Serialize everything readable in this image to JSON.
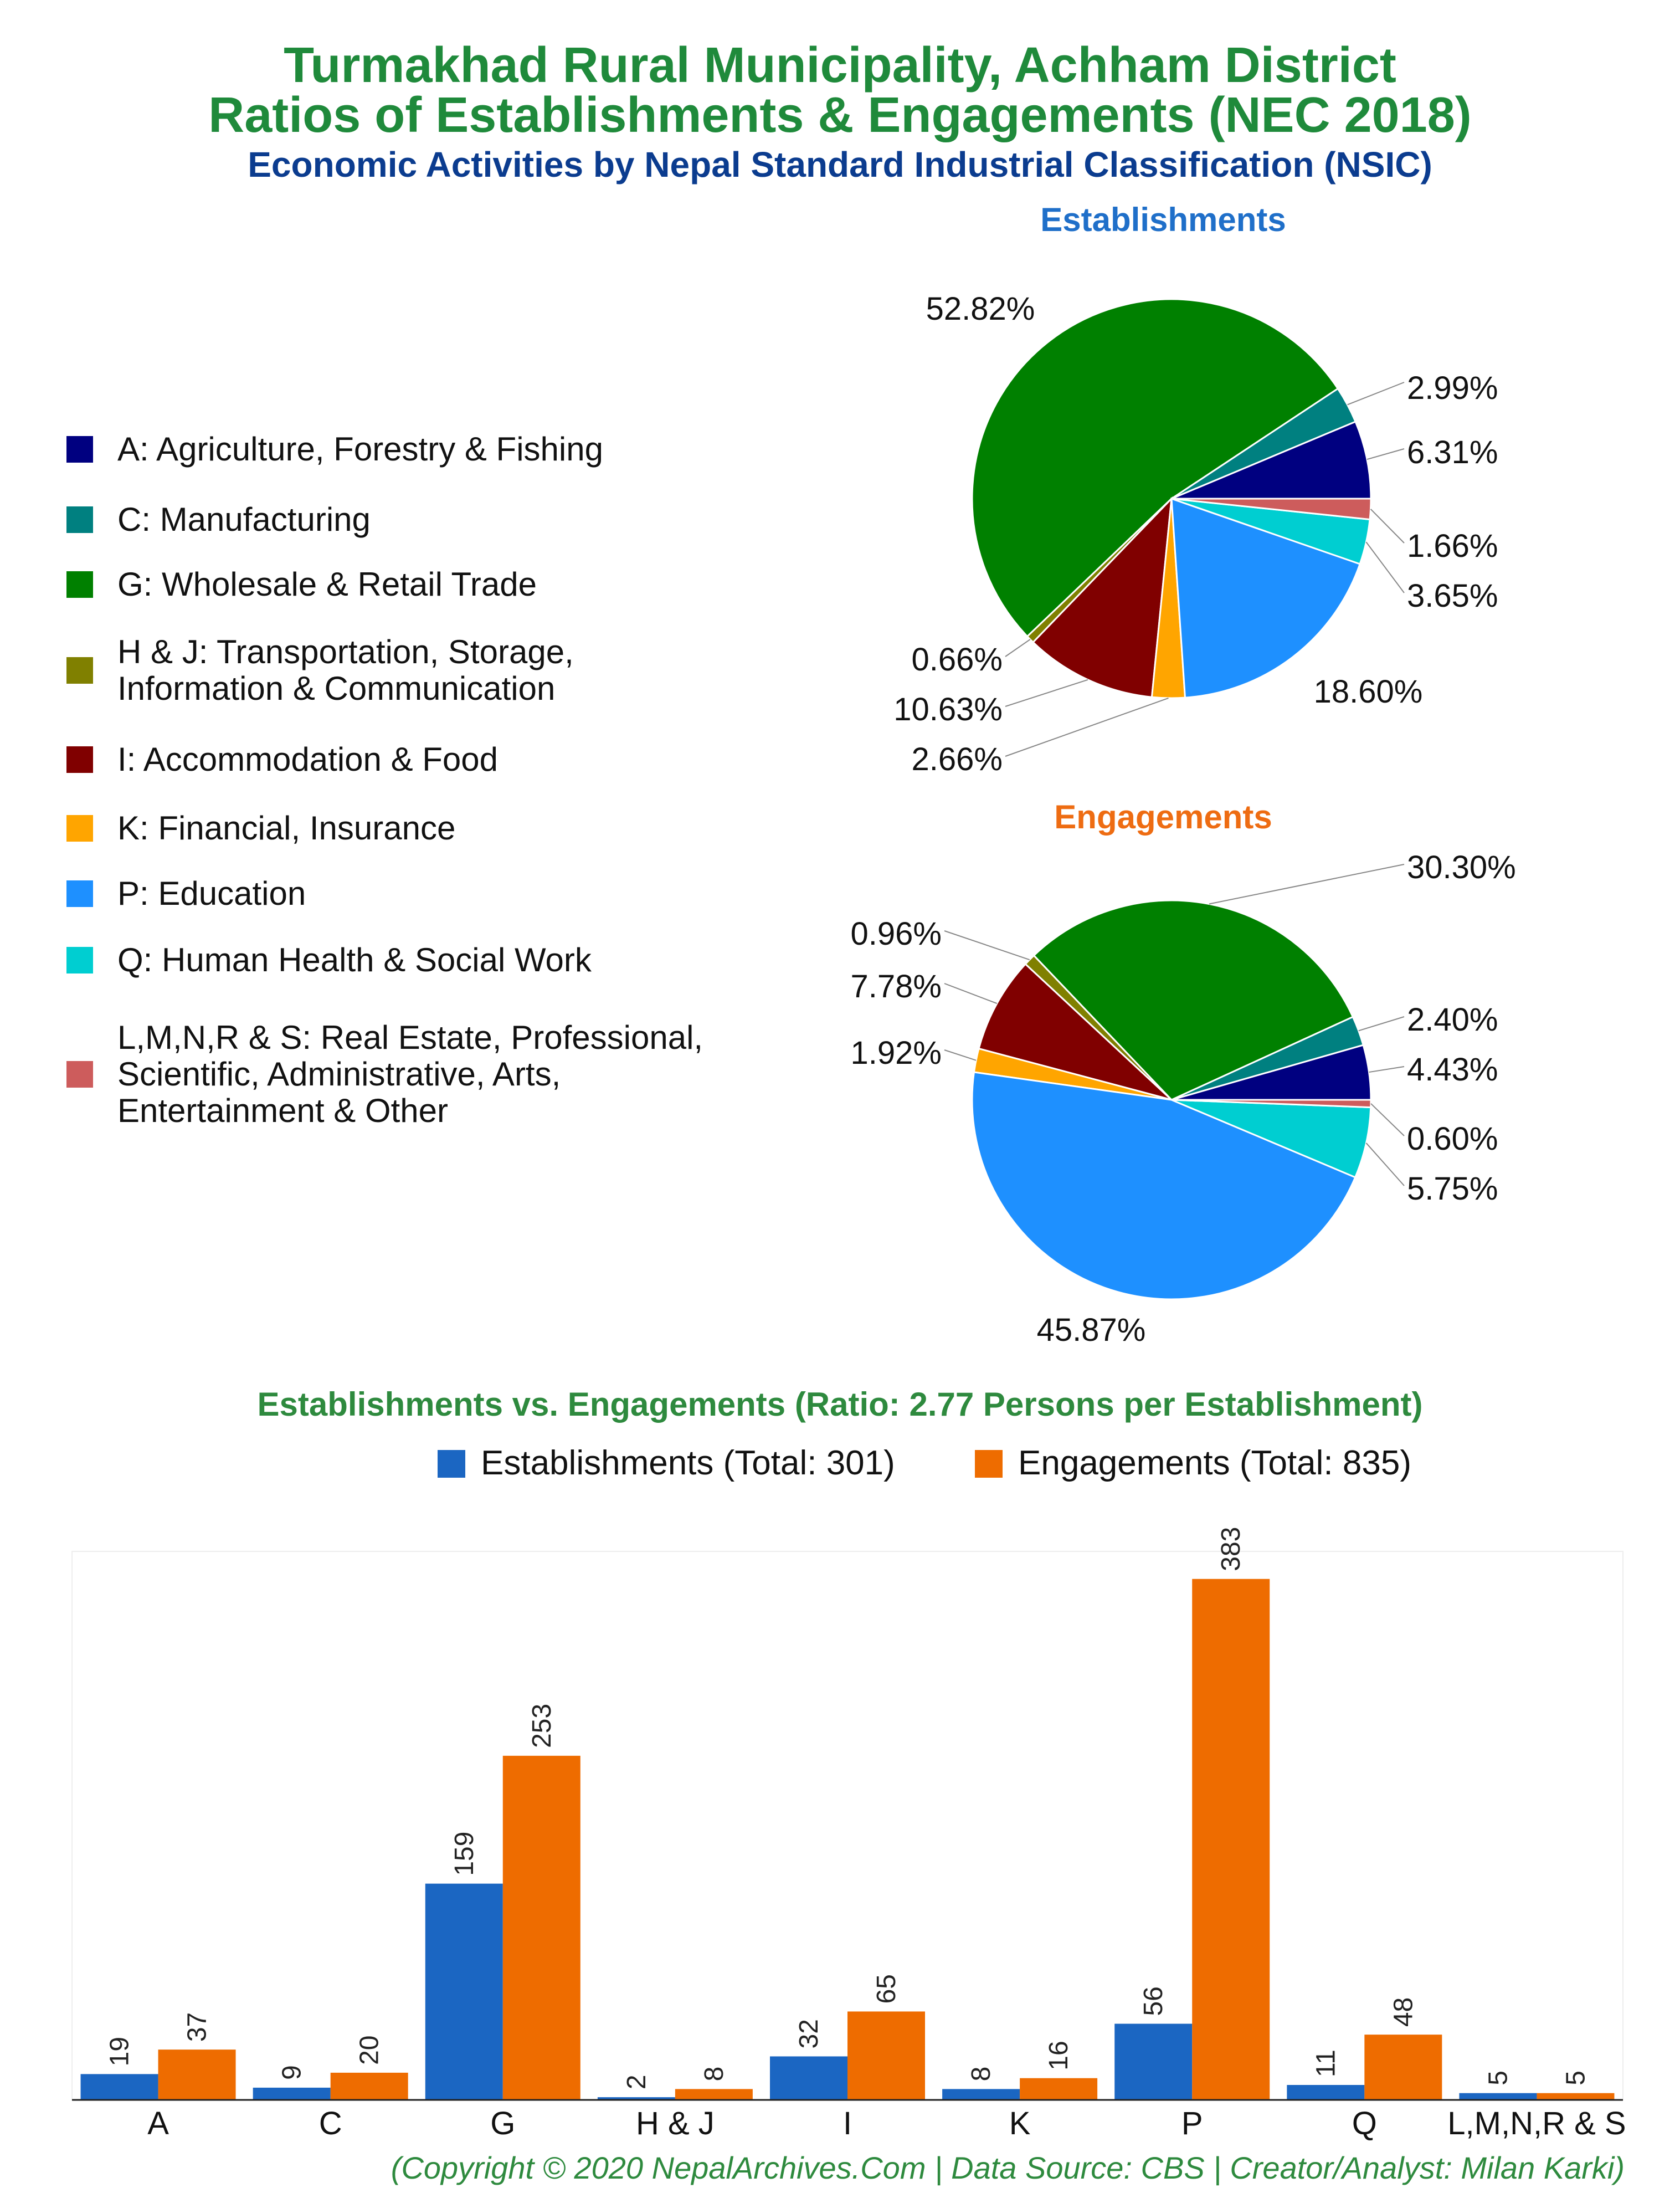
{
  "header": {
    "title_line1": "Turmakhad Rural Municipality, Achham District",
    "title_line2": "Ratios of Establishments & Engagements (NEC 2018)",
    "subtitle": "Economic Activities by Nepal Standard Industrial Classification (NSIC)"
  },
  "legend": [
    {
      "label": "A: Agriculture, Forestry & Fishing",
      "color": "#000080"
    },
    {
      "label": "C: Manufacturing",
      "color": "#008080"
    },
    {
      "label": "G: Wholesale & Retail Trade",
      "color": "#008000"
    },
    {
      "label_line1": "H & J: Transportation, Storage,",
      "label_line2": "Information & Communication",
      "color": "#808000"
    },
    {
      "label": "I: Accommodation & Food",
      "color": "#800000"
    },
    {
      "label": "K: Financial, Insurance",
      "color": "#FFA500"
    },
    {
      "label": "P: Education",
      "color": "#1E90FF"
    },
    {
      "label": "Q: Human Health & Social Work",
      "color": "#00CED1"
    },
    {
      "label_line1": "L,M,N,R & S: Real Estate, Professional,",
      "label_line2": "Scientific, Administrative, Arts,",
      "label_line3": "Entertainment & Other",
      "color": "#CD5C5C"
    }
  ],
  "chart_data": [
    {
      "type": "pie",
      "title": "Establishments",
      "title_color": "#1f6fc9",
      "categories": [
        "A",
        "C",
        "G",
        "H & J",
        "I",
        "K",
        "P",
        "Q",
        "L,M,N,R & S"
      ],
      "values": [
        6.31,
        2.99,
        52.82,
        0.66,
        10.63,
        2.66,
        18.6,
        3.65,
        1.66
      ],
      "labels": [
        "6.31%",
        "2.99%",
        "52.82%",
        "0.66%",
        "10.63%",
        "2.66%",
        "18.60%",
        "3.65%",
        "1.66%"
      ],
      "colors": [
        "#000080",
        "#008080",
        "#008000",
        "#808000",
        "#800000",
        "#FFA500",
        "#1E90FF",
        "#00CED1",
        "#CD5C5C"
      ]
    },
    {
      "type": "pie",
      "title": "Engagements",
      "title_color": "#ee6c12",
      "categories": [
        "A",
        "C",
        "G",
        "H & J",
        "I",
        "K",
        "P",
        "Q",
        "L,M,N,R & S"
      ],
      "values": [
        4.43,
        2.4,
        30.3,
        0.96,
        7.78,
        1.92,
        45.87,
        5.75,
        0.6
      ],
      "labels": [
        "4.43%",
        "2.40%",
        "30.30%",
        "0.96%",
        "7.78%",
        "1.92%",
        "45.87%",
        "5.75%",
        "0.60%"
      ],
      "colors": [
        "#000080",
        "#008080",
        "#008000",
        "#808000",
        "#800000",
        "#FFA500",
        "#1E90FF",
        "#00CED1",
        "#CD5C5C"
      ]
    },
    {
      "type": "bar",
      "title": "Establishments vs. Engagements (Ratio: 2.77 Persons per Establishment)",
      "categories": [
        "A",
        "C",
        "G",
        "H & J",
        "I",
        "K",
        "P",
        "Q",
        "L,M,N,R & S"
      ],
      "series": [
        {
          "name": "Establishments (Total: 301)",
          "color": "#1b66c2",
          "values": [
            19,
            9,
            159,
            2,
            32,
            8,
            56,
            11,
            5
          ]
        },
        {
          "name": "Engagements (Total: 835)",
          "color": "#ee6c00",
          "values": [
            37,
            20,
            253,
            8,
            65,
            16,
            383,
            48,
            5
          ]
        }
      ],
      "ylim": [
        0,
        400
      ]
    }
  ],
  "footer": "(Copyright © 2020 NepalArchives.Com | Data Source: CBS | Creator/Analyst: Milan Karki)"
}
